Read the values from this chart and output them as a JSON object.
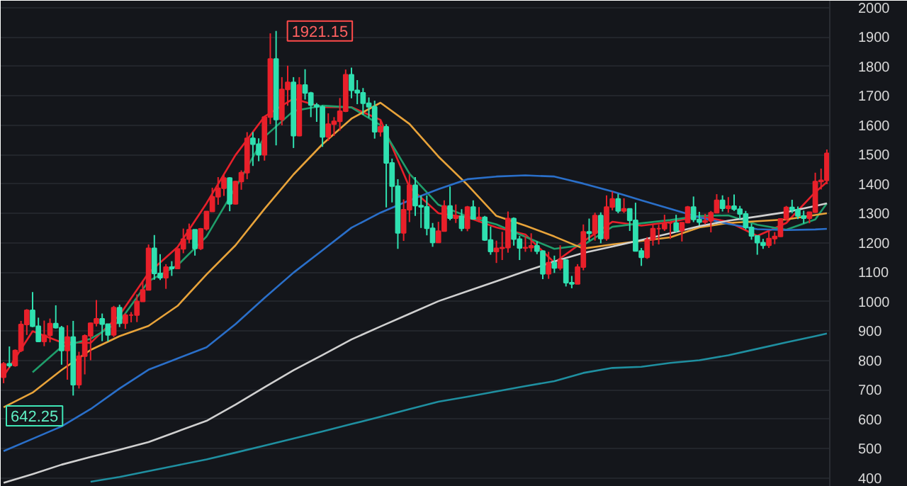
{
  "chart_data": {
    "type": "candlestick",
    "categories": [
      null,
      null,
      null,
      null,
      null,
      null,
      null,
      null,
      null,
      null,
      null,
      null,
      null,
      null,
      null,
      null,
      null,
      null,
      null,
      null,
      null,
      null,
      null,
      null,
      null,
      null,
      null,
      null,
      null,
      null,
      null,
      null,
      null,
      null,
      null,
      null,
      null,
      null,
      null,
      null,
      null,
      null,
      null,
      null,
      null,
      null,
      null,
      null,
      null,
      null,
      null,
      null,
      null,
      null,
      null,
      null,
      null,
      null,
      null,
      null,
      null,
      null,
      null,
      null,
      null,
      null,
      null,
      null,
      null,
      null,
      null,
      null,
      null,
      null,
      null,
      null,
      null,
      null,
      null,
      null,
      null,
      null,
      null,
      null,
      null,
      null,
      null,
      null,
      null,
      null,
      null,
      null,
      null,
      null,
      null,
      null,
      null,
      null,
      null,
      null,
      null,
      null,
      null,
      null,
      null,
      null,
      null,
      null,
      null,
      null,
      null,
      null,
      null,
      null,
      null,
      null,
      null,
      null,
      null,
      null,
      null,
      null,
      null,
      null,
      null,
      null,
      null,
      null,
      null,
      null,
      null,
      null,
      null,
      null,
      null,
      null,
      null,
      null,
      null,
      null,
      null,
      null,
      null
    ],
    "colors": [
      "#e8202a",
      "#2fe0b0",
      "#e8202a",
      "#e8202a",
      "#e8202a",
      "#2fe0b0",
      "#2fe0b0",
      "#e8202a",
      "#e8202a",
      "#2fe0b0",
      "#2fe0b0",
      "#e8202a",
      "#2fe0b0",
      "#e8202a",
      "#e8202a",
      "#e8202a",
      "#e8202a",
      "#2fe0b0",
      "#2fe0b0",
      "#e8202a",
      "#2fe0b0",
      "#e8202a",
      "#e8202a",
      "#e8202a",
      "#e8202a",
      "#e8202a",
      "#2fe0b0",
      "#2fe0b0",
      "#e8202a",
      "#2fe0b0",
      "#e8202a",
      "#e8202a",
      "#e8202a",
      "#2fe0b0",
      "#e8202a",
      "#e8202a",
      "#e8202a",
      "#e8202a",
      "#e8202a",
      "#2fe0b0",
      "#e8202a",
      "#e8202a",
      "#e8202a",
      "#2fe0b0",
      "#2fe0b0",
      "#e8202a",
      "#e8202a",
      "#2fe0b0",
      "#e8202a",
      "#e8202a",
      "#2fe0b0",
      "#e8202a",
      "#2fe0b0",
      "#2fe0b0",
      "#2fe0b0",
      "#2fe0b0",
      "#e8202a",
      "#e8202a",
      "#e8202a",
      "#e8202a",
      "#2fe0b0",
      "#2fe0b0",
      "#2fe0b0",
      "#2fe0b0",
      "#2fe0b0",
      "#e8202a",
      "#2fe0b0",
      "#2fe0b0",
      "#2fe0b0",
      "#e8202a",
      "#e8202a",
      "#2fe0b0",
      "#2fe0b0",
      "#2fe0b0",
      "#2fe0b0",
      "#e8202a",
      "#e8202a",
      "#2fe0b0",
      "#e8202a",
      "#2fe0b0",
      "#e8202a",
      "#2fe0b0",
      "#e8202a",
      "#2fe0b0",
      "#2fe0b0",
      "#e8202a",
      "#e8202a",
      "#e8202a",
      "#2fe0b0",
      "#2fe0b0",
      "#e8202a",
      "#e8202a",
      "#2fe0b0",
      "#2fe0b0",
      "#e8202a",
      "#2fe0b0",
      "#e8202a",
      "#2fe0b0",
      "#2fe0b0",
      "#e8202a",
      "#e8202a",
      "#2fe0b0",
      "#e8202a",
      "#2fe0b0",
      "#e8202a",
      "#e8202a",
      "#2fe0b0",
      "#e8202a",
      "#2fe0b0",
      "#2fe0b0",
      "#2fe0b0",
      "#e8202a",
      "#e8202a",
      "#e8202a",
      "#e8202a",
      "#e8202a",
      "#2fe0b0",
      "#e8202a",
      "#e8202a",
      "#2fe0b0",
      "#2fe0b0",
      "#e8202a",
      "#e8202a",
      "#e8202a",
      "#2fe0b0",
      "#e8202a",
      "#2fe0b0",
      "#2fe0b0",
      "#2fe0b0",
      "#2fe0b0",
      "#2fe0b0",
      "#2fe0b0",
      "#e8202a",
      "#e8202a",
      "#e8202a",
      "#e8202a",
      "#2fe0b0",
      "#2fe0b0",
      "#2fe0b0",
      "#e8202a",
      "#e8202a",
      "#e8202a",
      "#e8202a"
    ],
    "ohlc": [
      [
        743,
        795,
        723,
        789
      ],
      [
        789,
        848,
        776,
        783
      ],
      [
        783,
        838,
        779,
        834
      ],
      [
        834,
        935,
        829,
        923
      ],
      [
        923,
        975,
        887,
        971
      ],
      [
        971,
        1033,
        914,
        917
      ],
      [
        917,
        946,
        865,
        865
      ],
      [
        865,
        936,
        849,
        886
      ],
      [
        886,
        943,
        862,
        926
      ],
      [
        926,
        988,
        909,
        912
      ],
      [
        912,
        918,
        786,
        834
      ],
      [
        834,
        920,
        735,
        880
      ],
      [
        880,
        935,
        681,
        718
      ],
      [
        718,
        830,
        705,
        815
      ],
      [
        815,
        889,
        753,
        884
      ],
      [
        884,
        929,
        801,
        927
      ],
      [
        927,
        1006,
        916,
        942
      ],
      [
        942,
        960,
        866,
        924
      ],
      [
        924,
        924,
        865,
        887
      ],
      [
        887,
        986,
        880,
        980
      ],
      [
        980,
        990,
        914,
        927
      ],
      [
        927,
        961,
        908,
        955
      ],
      [
        955,
        965,
        930,
        955
      ],
      [
        955,
        1025,
        931,
        1001
      ],
      [
        1001,
        1072,
        1001,
        1040
      ],
      [
        1040,
        1195,
        1040,
        1182
      ],
      [
        1182,
        1227,
        1075,
        1096
      ],
      [
        1096,
        1162,
        1074,
        1082
      ],
      [
        1082,
        1128,
        1044,
        1118
      ],
      [
        1118,
        1138,
        1088,
        1113
      ],
      [
        1113,
        1180,
        1113,
        1180
      ],
      [
        1180,
        1249,
        1165,
        1213
      ],
      [
        1213,
        1266,
        1199,
        1245
      ],
      [
        1245,
        1245,
        1157,
        1181
      ],
      [
        1181,
        1251,
        1176,
        1248
      ],
      [
        1248,
        1307,
        1242,
        1307
      ],
      [
        1307,
        1388,
        1307,
        1357
      ],
      [
        1357,
        1424,
        1330,
        1386
      ],
      [
        1386,
        1431,
        1360,
        1421
      ],
      [
        1421,
        1424,
        1308,
        1333
      ],
      [
        1333,
        1411,
        1331,
        1409
      ],
      [
        1409,
        1447,
        1381,
        1439
      ],
      [
        1439,
        1577,
        1417,
        1556
      ],
      [
        1556,
        1577,
        1462,
        1536
      ],
      [
        1536,
        1556,
        1478,
        1500
      ],
      [
        1500,
        1632,
        1480,
        1628
      ],
      [
        1628,
        1913,
        1604,
        1826
      ],
      [
        1826,
        1921.15,
        1532,
        1620
      ],
      [
        1620,
        1764,
        1600,
        1722
      ],
      [
        1722,
        1803,
        1667,
        1746
      ],
      [
        1746,
        1764,
        1523,
        1565
      ],
      [
        1565,
        1764,
        1563,
        1737
      ],
      [
        1737,
        1791,
        1688,
        1710
      ],
      [
        1710,
        1714,
        1628,
        1669
      ],
      [
        1669,
        1676,
        1612,
        1663
      ],
      [
        1663,
        1668,
        1527,
        1561
      ],
      [
        1561,
        1641,
        1547,
        1604
      ],
      [
        1604,
        1628,
        1564,
        1614
      ],
      [
        1614,
        1693,
        1582,
        1648
      ],
      [
        1648,
        1790,
        1645,
        1772
      ],
      [
        1772,
        1796,
        1692,
        1719
      ],
      [
        1719,
        1754,
        1672,
        1711
      ],
      [
        1711,
        1727,
        1636,
        1675
      ],
      [
        1675,
        1695,
        1626,
        1663
      ],
      [
        1663,
        1684,
        1555,
        1578
      ],
      [
        1578,
        1616,
        1562,
        1595
      ],
      [
        1595,
        1604,
        1321,
        1472
      ],
      [
        1472,
        1487,
        1338,
        1393
      ],
      [
        1393,
        1417,
        1180,
        1234
      ],
      [
        1234,
        1348,
        1207,
        1313
      ],
      [
        1313,
        1434,
        1271,
        1396
      ],
      [
        1396,
        1424,
        1292,
        1327
      ],
      [
        1327,
        1361,
        1251,
        1323
      ],
      [
        1323,
        1362,
        1226,
        1250
      ],
      [
        1250,
        1268,
        1187,
        1202
      ],
      [
        1202,
        1272,
        1202,
        1240
      ],
      [
        1240,
        1345,
        1240,
        1326
      ],
      [
        1326,
        1392,
        1277,
        1284
      ],
      [
        1284,
        1331,
        1268,
        1291
      ],
      [
        1291,
        1315,
        1240,
        1250
      ],
      [
        1250,
        1326,
        1240,
        1322
      ],
      [
        1322,
        1345,
        1281,
        1282
      ],
      [
        1282,
        1322,
        1271,
        1287
      ],
      [
        1287,
        1292,
        1207,
        1210
      ],
      [
        1210,
        1256,
        1160,
        1171
      ],
      [
        1171,
        1208,
        1132,
        1182
      ],
      [
        1182,
        1238,
        1142,
        1184
      ],
      [
        1184,
        1307,
        1167,
        1283
      ],
      [
        1283,
        1287,
        1191,
        1213
      ],
      [
        1213,
        1224,
        1142,
        1183
      ],
      [
        1183,
        1224,
        1170,
        1184
      ],
      [
        1184,
        1233,
        1170,
        1190
      ],
      [
        1190,
        1205,
        1162,
        1172
      ],
      [
        1172,
        1175,
        1077,
        1095
      ],
      [
        1095,
        1170,
        1078,
        1133
      ],
      [
        1133,
        1157,
        1098,
        1115
      ],
      [
        1115,
        1192,
        1107,
        1142
      ],
      [
        1142,
        1143,
        1052,
        1065
      ],
      [
        1065,
        1088,
        1046,
        1061
      ],
      [
        1061,
        1128,
        1061,
        1118
      ],
      [
        1118,
        1263,
        1107,
        1238
      ],
      [
        1238,
        1283,
        1208,
        1233
      ],
      [
        1233,
        1303,
        1208,
        1293
      ],
      [
        1293,
        1304,
        1199,
        1215
      ],
      [
        1215,
        1362,
        1208,
        1322
      ],
      [
        1322,
        1375,
        1311,
        1350
      ],
      [
        1350,
        1367,
        1301,
        1309
      ],
      [
        1309,
        1352,
        1302,
        1316
      ],
      [
        1316,
        1318,
        1241,
        1277
      ],
      [
        1277,
        1337,
        1171,
        1173
      ],
      [
        1173,
        1183,
        1122,
        1151
      ],
      [
        1151,
        1220,
        1146,
        1211
      ],
      [
        1211,
        1264,
        1191,
        1249
      ],
      [
        1249,
        1262,
        1195,
        1249
      ],
      [
        1249,
        1296,
        1241,
        1268
      ],
      [
        1268,
        1270,
        1214,
        1268
      ],
      [
        1268,
        1296,
        1236,
        1242
      ],
      [
        1242,
        1270,
        1205,
        1269
      ],
      [
        1269,
        1326,
        1267,
        1322
      ],
      [
        1322,
        1358,
        1271,
        1280
      ],
      [
        1280,
        1306,
        1260,
        1271
      ],
      [
        1271,
        1299,
        1264,
        1275
      ],
      [
        1275,
        1309,
        1236,
        1303
      ],
      [
        1303,
        1366,
        1302,
        1345
      ],
      [
        1345,
        1362,
        1307,
        1318
      ],
      [
        1318,
        1356,
        1303,
        1325
      ],
      [
        1325,
        1365,
        1309,
        1315
      ],
      [
        1315,
        1326,
        1281,
        1299
      ],
      [
        1299,
        1309,
        1246,
        1253
      ],
      [
        1253,
        1266,
        1211,
        1224
      ],
      [
        1224,
        1224,
        1160,
        1201
      ],
      [
        1201,
        1214,
        1180,
        1192
      ],
      [
        1192,
        1243,
        1183,
        1215
      ],
      [
        1215,
        1237,
        1196,
        1222
      ],
      [
        1222,
        1284,
        1221,
        1282
      ],
      [
        1282,
        1326,
        1276,
        1321
      ],
      [
        1321,
        1347,
        1302,
        1313
      ],
      [
        1313,
        1324,
        1281,
        1292
      ],
      [
        1292,
        1310,
        1266,
        1284
      ],
      [
        1284,
        1306,
        1267,
        1305
      ],
      [
        1305,
        1439,
        1302,
        1409
      ],
      [
        1409,
        1453,
        1382,
        1413
      ],
      [
        1413,
        1518,
        1400,
        1505
      ]
    ],
    "series": [
      {
        "type": "line",
        "color": "#e8202a",
        "values": [
          747,
          null,
          null,
          null,
          null,
          900,
          null,
          null,
          null,
          null,
          862,
          null,
          null,
          null,
          null,
          860,
          null,
          null,
          null,
          null,
          955,
          null,
          null,
          null,
          null,
          1098,
          null,
          null,
          null,
          null,
          1186,
          null,
          null,
          null,
          null,
          1335,
          null,
          null,
          null,
          null,
          1499,
          null,
          null,
          null,
          null,
          1630,
          null,
          null,
          null,
          null,
          1691,
          null,
          null,
          null,
          null,
          1662,
          null,
          null,
          null,
          null,
          1662,
          null,
          null,
          null,
          null,
          1619,
          null,
          null,
          null,
          null,
          1390,
          null,
          null,
          null,
          null,
          1301,
          null,
          null,
          null,
          null,
          1287,
          null,
          null,
          null,
          null,
          1253,
          null,
          null,
          null,
          null,
          1229,
          null,
          null,
          null,
          null,
          1133,
          null,
          null,
          null,
          null,
          1205,
          null,
          null,
          null,
          null,
          1272,
          null,
          null,
          null,
          null,
          1259,
          null,
          null,
          null,
          null,
          1271,
          null,
          null,
          null,
          null,
          1291,
          null,
          null,
          null,
          null,
          1272,
          null,
          null,
          null,
          null,
          1224,
          null,
          null,
          null,
          null,
          1268,
          null,
          null,
          null,
          null,
          1373,
          null,
          1407
        ]
      },
      {
        "type": "line",
        "color": "#1f9e6b",
        "values": [
          null,
          null,
          null,
          null,
          null,
          760,
          null,
          null,
          null,
          null,
          847,
          null,
          null,
          null,
          null,
          874,
          null,
          null,
          null,
          null,
          933,
          null,
          null,
          null,
          null,
          1070,
          null,
          null,
          null,
          null,
          1124,
          null,
          null,
          null,
          null,
          1222,
          null,
          null,
          null,
          null,
          1388,
          null,
          null,
          null,
          null,
          1561,
          null,
          null,
          null,
          null,
          1649,
          null,
          null,
          null,
          null,
          1667,
          null,
          null,
          null,
          null,
          1661,
          null,
          null,
          null,
          null,
          1601,
          null,
          null,
          null,
          null,
          1436,
          null,
          null,
          null,
          null,
          1330,
          null,
          null,
          null,
          null,
          1290,
          null,
          null,
          null,
          null,
          1263,
          null,
          null,
          null,
          null,
          1221,
          null,
          null,
          null,
          null,
          1180,
          null,
          null,
          null,
          null,
          1193,
          null,
          null,
          null,
          null,
          1255,
          null,
          null,
          null,
          null,
          1267,
          null,
          null,
          null,
          null,
          1278,
          null,
          null,
          null,
          null,
          1292,
          null,
          null,
          null,
          null,
          1294,
          null,
          null,
          null,
          null,
          1262,
          null,
          null,
          null,
          null,
          1245,
          null,
          null,
          null,
          null,
          1280,
          null,
          1335
        ]
      },
      {
        "type": "line",
        "color": "#e8a33a",
        "values": [
          641,
          null,
          null,
          null,
          null,
          691,
          null,
          null,
          null,
          null,
          768,
          null,
          null,
          null,
          null,
          836,
          null,
          null,
          null,
          null,
          883,
          null,
          null,
          null,
          null,
          918,
          null,
          null,
          null,
          null,
          986,
          null,
          null,
          null,
          null,
          1093,
          null,
          null,
          null,
          null,
          1192,
          null,
          null,
          null,
          null,
          1316,
          null,
          null,
          null,
          null,
          1433,
          null,
          null,
          null,
          null,
          1536,
          null,
          null,
          null,
          null,
          1623,
          null,
          null,
          null,
          null,
          1677,
          null,
          null,
          null,
          null,
          1605,
          null,
          null,
          null,
          null,
          1494,
          null,
          null,
          null,
          null,
          1398,
          null,
          null,
          null,
          null,
          1292,
          null,
          null,
          null,
          null,
          1259,
          null,
          null,
          null,
          null,
          1222,
          null,
          null,
          null,
          null,
          1181,
          null,
          null,
          null,
          null,
          1195,
          null,
          null,
          null,
          null,
          1207,
          null,
          null,
          null,
          null,
          1219,
          null,
          null,
          null,
          null,
          1253,
          null,
          null,
          null,
          null,
          1268,
          null,
          null,
          null,
          null,
          1274,
          null,
          null,
          null,
          null,
          1280,
          null,
          null,
          null,
          null,
          1295,
          null,
          1301
        ]
      },
      {
        "type": "line",
        "color": "#2a6fc9",
        "values": [
          492,
          null,
          null,
          null,
          null,
          534,
          null,
          null,
          null,
          null,
          576,
          null,
          null,
          null,
          null,
          635,
          null,
          null,
          null,
          null,
          705,
          null,
          null,
          null,
          null,
          769,
          null,
          null,
          null,
          null,
          807,
          null,
          null,
          null,
          null,
          845,
          null,
          null,
          null,
          null,
          924,
          null,
          null,
          null,
          null,
          1013,
          null,
          null,
          null,
          null,
          1099,
          null,
          null,
          null,
          null,
          1175,
          null,
          null,
          null,
          null,
          1252,
          null,
          null,
          null,
          null,
          1303,
          null,
          null,
          null,
          null,
          1345,
          null,
          null,
          null,
          null,
          1383,
          null,
          null,
          null,
          null,
          1417,
          null,
          null,
          null,
          null,
          1426,
          null,
          null,
          null,
          null,
          1430,
          null,
          null,
          null,
          null,
          1426,
          null,
          null,
          null,
          null,
          1402,
          null,
          null,
          null,
          null,
          1375,
          null,
          null,
          null,
          null,
          1345,
          null,
          null,
          null,
          null,
          1316,
          null,
          null,
          null,
          null,
          1287,
          null,
          null,
          null,
          null,
          1265,
          null,
          null,
          null,
          null,
          1247,
          null,
          null,
          null,
          null,
          1244,
          null,
          null,
          null,
          null,
          1246,
          null,
          1248
        ]
      },
      {
        "type": "line",
        "color": "#d0d0d0",
        "values": [
          384,
          null,
          null,
          null,
          null,
          414,
          null,
          null,
          null,
          null,
          446,
          null,
          null,
          null,
          null,
          472,
          null,
          null,
          null,
          null,
          497,
          null,
          null,
          null,
          null,
          523,
          null,
          null,
          null,
          null,
          559,
          null,
          null,
          null,
          null,
          595,
          null,
          null,
          null,
          null,
          650,
          null,
          null,
          null,
          null,
          709,
          null,
          null,
          null,
          null,
          767,
          null,
          null,
          null,
          null,
          819,
          null,
          null,
          null,
          null,
          872,
          null,
          null,
          null,
          null,
          916,
          null,
          null,
          null,
          null,
          959,
          null,
          null,
          null,
          null,
          1002,
          null,
          null,
          null,
          null,
          1036,
          null,
          null,
          null,
          null,
          1070,
          null,
          null,
          null,
          null,
          1104,
          null,
          null,
          null,
          null,
          1137,
          null,
          null,
          null,
          null,
          1166,
          null,
          null,
          null,
          null,
          1188,
          null,
          null,
          null,
          null,
          1210,
          null,
          null,
          null,
          null,
          1233,
          null,
          null,
          null,
          null,
          1257,
          null,
          null,
          null,
          null,
          1276,
          null,
          null,
          null,
          null,
          1290,
          null,
          null,
          null,
          null,
          1305,
          null,
          null,
          null,
          null,
          1326,
          null,
          1335
        ]
      },
      {
        "type": "line",
        "color": "#1f8fa0",
        "values": [
          null,
          null,
          null,
          null,
          null,
          null,
          null,
          null,
          null,
          null,
          null,
          null,
          null,
          null,
          null,
          388,
          null,
          null,
          null,
          null,
          404,
          null,
          null,
          null,
          null,
          424,
          null,
          null,
          null,
          null,
          444,
          null,
          null,
          null,
          null,
          464,
          null,
          null,
          null,
          null,
          487,
          null,
          null,
          null,
          null,
          511,
          null,
          null,
          null,
          null,
          535,
          null,
          null,
          null,
          null,
          559,
          null,
          null,
          null,
          null,
          584,
          null,
          null,
          null,
          null,
          609,
          null,
          null,
          null,
          null,
          635,
          null,
          null,
          null,
          null,
          660,
          null,
          null,
          null,
          null,
          677,
          null,
          null,
          null,
          null,
          695,
          null,
          null,
          null,
          null,
          713,
          null,
          null,
          null,
          null,
          730,
          null,
          null,
          null,
          null,
          758,
          null,
          null,
          null,
          null,
          775,
          null,
          null,
          null,
          null,
          779,
          null,
          null,
          null,
          null,
          792,
          null,
          null,
          null,
          null,
          801,
          null,
          null,
          null,
          null,
          818,
          null,
          null,
          null,
          null,
          840,
          null,
          null,
          null,
          null,
          862,
          null,
          null,
          null,
          null,
          883,
          null,
          892
        ]
      }
    ],
    "ylim": [
      371,
      2024
    ],
    "yticks": [
      400,
      500,
      600,
      700,
      800,
      900,
      1000,
      1100,
      1200,
      1300,
      1400,
      1500,
      1600,
      1700,
      1800,
      1900,
      2000
    ],
    "grid": "y",
    "tick_labels": "y",
    "annotations": [
      "1921.15",
      "642.25"
    ]
  }
}
